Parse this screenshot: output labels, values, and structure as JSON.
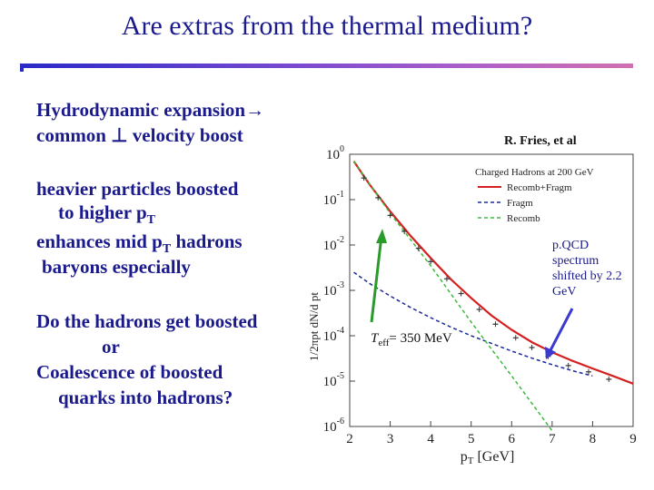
{
  "slide": {
    "title": "Are extras from the thermal medium?",
    "bullets": {
      "hydro_line1": "Hydrodynamic expansion",
      "hydro_arrow": "→",
      "hydro_line2_pre": "common ",
      "perp_symbol": "⊥",
      "hydro_line2_post": " velocity boost",
      "heavier_line1": "heavier particles boosted",
      "heavier_line2_pre": "to higher p",
      "heavier_line2_sub": "T",
      "enhance_line1_pre": "enhances mid p",
      "enhance_line1_sub": "T",
      "enhance_line1_post": " hadrons",
      "enhance_line2": "baryons especially",
      "question_line1": "Do the hadrons get boosted",
      "question_line2": "or",
      "question_line3": "Coalescence of boosted",
      "question_line4": "quarks into hadrons?"
    },
    "credit": "R. Fries, et al"
  },
  "chart_data": {
    "type": "line",
    "title": "",
    "xlabel_base": "p",
    "xlabel_sub": "T",
    "xlabel_unit": " [GeV]",
    "ylabel": "1/2πpt dN/d pt",
    "xlim": [
      2,
      9
    ],
    "ylim_log10": [
      -6,
      0
    ],
    "y_scale": "log",
    "x_ticks": [
      "2",
      "3",
      "4",
      "5",
      "6",
      "7",
      "8",
      "9"
    ],
    "y_ticks": [
      {
        "base": "10",
        "exp": "0"
      },
      {
        "base": "10",
        "exp": "-1"
      },
      {
        "base": "10",
        "exp": "-2"
      },
      {
        "base": "10",
        "exp": "-3"
      },
      {
        "base": "10",
        "exp": "-4"
      },
      {
        "base": "10",
        "exp": "-5"
      },
      {
        "base": "10",
        "exp": "-6"
      }
    ],
    "legend_position": "top-right",
    "legend_title": "Charged Hadrons at 200 GeV",
    "series": [
      {
        "name": "Recomb+Fragm",
        "color": "#d42020",
        "style": "solid",
        "x": [
          2.1,
          2.5,
          3.0,
          3.5,
          4.0,
          4.5,
          5.0,
          5.5,
          6.0,
          6.5,
          7.0,
          7.5,
          8.0,
          8.5,
          9.0
        ],
        "y": [
          0.7,
          0.21,
          0.055,
          0.016,
          0.0052,
          0.00175,
          0.00068,
          0.00028,
          0.000135,
          7.2e-05,
          4.3e-05,
          2.8e-05,
          1.9e-05,
          1.3e-05,
          8.8e-06
        ]
      },
      {
        "name": "Fragm",
        "color": "#1a2a9a",
        "style": "dashed",
        "x": [
          2.1,
          2.5,
          3.0,
          3.5,
          4.0,
          4.5,
          5.0,
          5.5,
          6.0,
          6.5,
          7.0,
          7.5,
          8.0
        ],
        "y": [
          0.0025,
          0.0014,
          0.00075,
          0.00042,
          0.00025,
          0.000155,
          0.0001,
          6.8e-05,
          4.6e-05,
          3.2e-05,
          2.3e-05,
          1.7e-05,
          1.3e-05
        ]
      },
      {
        "name": "Recomb",
        "color": "#3db83d",
        "style": "dashed",
        "x": [
          2.1,
          3.0,
          4.0,
          5.0,
          6.0,
          7.0
        ],
        "y": [
          0.7,
          0.05,
          0.0035,
          0.0002,
          1.3e-05,
          8e-07
        ]
      }
    ],
    "data_points": {
      "marker_color": "#333333",
      "x": [
        2.35,
        2.7,
        3.0,
        3.35,
        3.7,
        4.0,
        4.4,
        4.75,
        5.2,
        5.6,
        6.1,
        6.5,
        6.9,
        7.4,
        7.9,
        8.4
      ],
      "y": [
        0.3,
        0.11,
        0.045,
        0.02,
        0.0085,
        0.0043,
        0.0018,
        0.00085,
        0.00038,
        0.00018,
        9e-05,
        5.5e-05,
        3.5e-05,
        2.2e-05,
        1.6e-05,
        1.1e-05
      ]
    },
    "annotations": {
      "pqcd_line1": "p.QCD",
      "pqcd_line2": "spectrum",
      "pqcd_line3": "shifted by 2.2",
      "pqcd_line4": "GeV",
      "teff_base": "T",
      "teff_sub": "eff",
      "teff_value": "= 350 MeV",
      "green_arrow_color": "#2a9a2a",
      "blue_arrow_color": "#3a3ad0"
    }
  }
}
